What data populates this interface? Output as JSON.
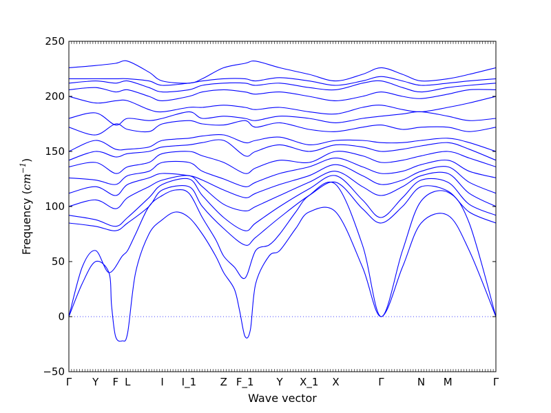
{
  "chart_data": {
    "type": "line",
    "title": "",
    "xlabel": "Wave vector",
    "ylabel": "Frequency ($cm^{-1}$)",
    "ylabel_parts": {
      "text": "Frequency (",
      "unit": "cm",
      "exp": "−1",
      "close": ")"
    },
    "ylim": [
      -50,
      250
    ],
    "yticks": [
      -50,
      0,
      50,
      100,
      150,
      200,
      250
    ],
    "ytick_labels": [
      "−50",
      "0",
      "50",
      "100",
      "150",
      "200",
      "250"
    ],
    "xlim": [
      0,
      16
    ],
    "xticks": [
      {
        "x": 0.0,
        "label": "Γ"
      },
      {
        "x": 1.0,
        "label": "Y"
      },
      {
        "x": 1.75,
        "label": "F"
      },
      {
        "x": 2.2,
        "label": "L"
      },
      {
        "x": 3.5,
        "label": "I"
      },
      {
        "x": 4.5,
        "label": "I_1"
      },
      {
        "x": 5.8,
        "label": "Z"
      },
      {
        "x": 6.6,
        "label": "F_1"
      },
      {
        "x": 7.9,
        "label": "Y"
      },
      {
        "x": 9.0,
        "label": "X_1"
      },
      {
        "x": 10.0,
        "label": "X"
      },
      {
        "x": 11.7,
        "label": "Γ"
      },
      {
        "x": 13.2,
        "label": "N"
      },
      {
        "x": 14.2,
        "label": "M"
      },
      {
        "x": 16.0,
        "label": "Γ"
      }
    ],
    "zero_line": true,
    "line_color": "#0000ff",
    "series": [
      {
        "x": [
          0,
          0.5,
          1,
          1.5,
          1.6,
          1.75,
          2,
          2.2,
          2.5,
          3,
          3.5,
          4,
          4.5,
          5,
          5.5,
          5.8,
          6.2,
          6.4,
          6.6,
          6.8,
          7,
          7.5,
          7.9,
          8.5,
          9,
          10,
          11,
          11.7,
          12.5,
          13.2,
          14.2,
          15,
          16
        ],
        "values": [
          0,
          30,
          50,
          40,
          10,
          -18,
          -22,
          -15,
          40,
          75,
          88,
          95,
          90,
          75,
          55,
          40,
          25,
          5,
          -18,
          -12,
          30,
          55,
          60,
          80,
          95,
          95,
          45,
          0,
          45,
          85,
          92,
          60,
          0
        ]
      },
      {
        "x": [
          0,
          0.5,
          1,
          1.5,
          2,
          2.2,
          2.5,
          3,
          3.5,
          4,
          4.5,
          5,
          5.5,
          5.8,
          6.2,
          6.6,
          7,
          7.5,
          7.9,
          8.5,
          9,
          10,
          11,
          11.7,
          12.5,
          13.2,
          14.2,
          15,
          16
        ],
        "values": [
          0,
          45,
          60,
          40,
          55,
          60,
          75,
          100,
          110,
          115,
          112,
          90,
          70,
          55,
          45,
          35,
          60,
          65,
          75,
          95,
          110,
          120,
          65,
          0,
          60,
          105,
          113,
          85,
          0
        ]
      },
      {
        "x": [
          0,
          1,
          1.75,
          2.2,
          3,
          3.5,
          4.5,
          5,
          5.8,
          6.6,
          7,
          7.9,
          9,
          10,
          11,
          11.7,
          12.5,
          13.2,
          14.2,
          15,
          16
        ],
        "values": [
          85,
          82,
          78,
          85,
          100,
          115,
          118,
          100,
          80,
          65,
          72,
          90,
          110,
          122,
          98,
          85,
          100,
          118,
          114,
          95,
          85
        ]
      },
      {
        "x": [
          0,
          1,
          1.75,
          2.2,
          3,
          3.5,
          4.5,
          5,
          5.8,
          6.6,
          7,
          7.9,
          9,
          10,
          11,
          11.7,
          12.5,
          13.2,
          14.2,
          15,
          16
        ],
        "values": [
          92,
          88,
          82,
          90,
          108,
          120,
          125,
          110,
          90,
          78,
          85,
          100,
          116,
          128,
          106,
          90,
          108,
          124,
          122,
          102,
          92
        ]
      },
      {
        "x": [
          0,
          1,
          1.75,
          2.2,
          3,
          3.5,
          4.5,
          5,
          5.8,
          6.6,
          7,
          7.9,
          9,
          10,
          11,
          11.7,
          12.5,
          13.2,
          14.2,
          15,
          16
        ],
        "values": [
          100,
          106,
          98,
          108,
          118,
          124,
          128,
          118,
          102,
          96,
          100,
          110,
          122,
          132,
          118,
          110,
          118,
          128,
          130,
          112,
          100
        ]
      },
      {
        "x": [
          0,
          1,
          1.75,
          2.2,
          3,
          3.5,
          4.5,
          5,
          5.8,
          6.6,
          7,
          7.9,
          9,
          10,
          11,
          11.7,
          12.5,
          13.2,
          14.2,
          15,
          16
        ],
        "values": [
          112,
          118,
          110,
          120,
          126,
          130,
          128,
          124,
          115,
          108,
          112,
          120,
          128,
          138,
          128,
          120,
          124,
          132,
          136,
          122,
          112
        ]
      },
      {
        "x": [
          0,
          1,
          1.75,
          2.2,
          3,
          3.5,
          4.5,
          5,
          5.8,
          6.6,
          7,
          7.9,
          9,
          10,
          11,
          11.7,
          12.5,
          13.2,
          14.2,
          15,
          16
        ],
        "values": [
          126,
          124,
          120,
          128,
          132,
          140,
          140,
          132,
          125,
          118,
          122,
          130,
          136,
          144,
          136,
          130,
          132,
          138,
          142,
          132,
          126
        ]
      },
      {
        "x": [
          0,
          1,
          1.75,
          2.2,
          3,
          3.5,
          4.5,
          5,
          5.8,
          6.6,
          7,
          7.9,
          9,
          10,
          11,
          11.7,
          12.5,
          13.2,
          14.2,
          15,
          16
        ],
        "values": [
          136,
          140,
          130,
          136,
          140,
          148,
          150,
          146,
          140,
          130,
          135,
          142,
          140,
          150,
          146,
          140,
          142,
          146,
          150,
          144,
          136
        ]
      },
      {
        "x": [
          0,
          1,
          1.75,
          2.2,
          3,
          3.5,
          4.5,
          5,
          5.8,
          6.6,
          7,
          7.9,
          9,
          10,
          11,
          11.7,
          12.5,
          13.2,
          14.2,
          15,
          16
        ],
        "values": [
          142,
          150,
          145,
          148,
          150,
          154,
          156,
          158,
          160,
          146,
          150,
          156,
          150,
          156,
          154,
          150,
          152,
          155,
          158,
          152,
          142
        ]
      },
      {
        "x": [
          0,
          1,
          1.75,
          2.2,
          3,
          3.5,
          4.5,
          5,
          5.8,
          6.6,
          7,
          7.9,
          9,
          10,
          11,
          11.7,
          12.5,
          13.2,
          14.2,
          15,
          16
        ],
        "values": [
          150,
          160,
          152,
          152,
          154,
          160,
          162,
          164,
          165,
          158,
          160,
          163,
          156,
          160,
          160,
          158,
          158,
          160,
          162,
          158,
          150
        ]
      },
      {
        "x": [
          0,
          1,
          1.75,
          2.2,
          3,
          3.5,
          4.5,
          5,
          5.8,
          6.6,
          7,
          7.9,
          9,
          10,
          11,
          11.7,
          12.5,
          13.2,
          14.2,
          15,
          16
        ],
        "values": [
          172,
          165,
          175,
          170,
          168,
          175,
          178,
          175,
          174,
          178,
          172,
          176,
          170,
          168,
          172,
          174,
          170,
          172,
          172,
          168,
          172
        ]
      },
      {
        "x": [
          0,
          1,
          1.75,
          2.2,
          3,
          3.5,
          4.5,
          5,
          5.8,
          6.6,
          7,
          7.9,
          9,
          10,
          11,
          11.7,
          12.5,
          13.2,
          14.2,
          15,
          16
        ],
        "values": [
          180,
          185,
          174,
          180,
          178,
          180,
          186,
          180,
          182,
          180,
          178,
          182,
          180,
          176,
          180,
          182,
          184,
          186,
          182,
          178,
          180
        ]
      },
      {
        "x": [
          0,
          1,
          1.75,
          2.2,
          3,
          3.5,
          4.5,
          5,
          5.8,
          6.6,
          7,
          7.9,
          9,
          10,
          11,
          11.7,
          12.5,
          13.2,
          14.2,
          15,
          16
        ],
        "values": [
          200,
          194,
          196,
          196,
          188,
          186,
          190,
          190,
          192,
          190,
          188,
          190,
          186,
          184,
          190,
          192,
          188,
          186,
          190,
          194,
          200
        ]
      },
      {
        "x": [
          0,
          1,
          1.75,
          2.2,
          3,
          3.5,
          4.5,
          5,
          5.8,
          6.6,
          7,
          7.9,
          9,
          10,
          11,
          11.7,
          12.5,
          13.2,
          14.2,
          15,
          16
        ],
        "values": [
          206,
          208,
          204,
          206,
          200,
          196,
          200,
          204,
          206,
          204,
          202,
          204,
          200,
          196,
          200,
          204,
          200,
          198,
          202,
          206,
          206
        ]
      },
      {
        "x": [
          0,
          1,
          1.75,
          2.2,
          3,
          3.5,
          4.5,
          5,
          5.8,
          6.6,
          7,
          7.9,
          9,
          10,
          11,
          11.7,
          12.5,
          13.2,
          14.2,
          15,
          16
        ],
        "values": [
          212,
          214,
          212,
          214,
          208,
          204,
          206,
          210,
          212,
          212,
          210,
          212,
          208,
          206,
          212,
          214,
          208,
          204,
          208,
          210,
          212
        ]
      },
      {
        "x": [
          0,
          1,
          1.75,
          2.2,
          3,
          3.5,
          4.5,
          5,
          5.8,
          6.6,
          7,
          7.9,
          9,
          10,
          11,
          11.7,
          12.5,
          13.2,
          14.2,
          15,
          16
        ],
        "values": [
          216,
          216,
          216,
          216,
          214,
          210,
          212,
          214,
          216,
          216,
          214,
          217,
          214,
          210,
          214,
          218,
          214,
          210,
          212,
          214,
          216
        ]
      },
      {
        "x": [
          0,
          1,
          1.75,
          2.2,
          3,
          3.5,
          4.5,
          5,
          5.8,
          6.6,
          7,
          7.9,
          9,
          10,
          11,
          11.7,
          12.5,
          13.2,
          14.2,
          15,
          16
        ],
        "values": [
          226,
          228,
          230,
          232,
          222,
          214,
          212,
          216,
          226,
          230,
          232,
          226,
          220,
          214,
          220,
          226,
          220,
          214,
          216,
          220,
          226
        ]
      }
    ]
  }
}
